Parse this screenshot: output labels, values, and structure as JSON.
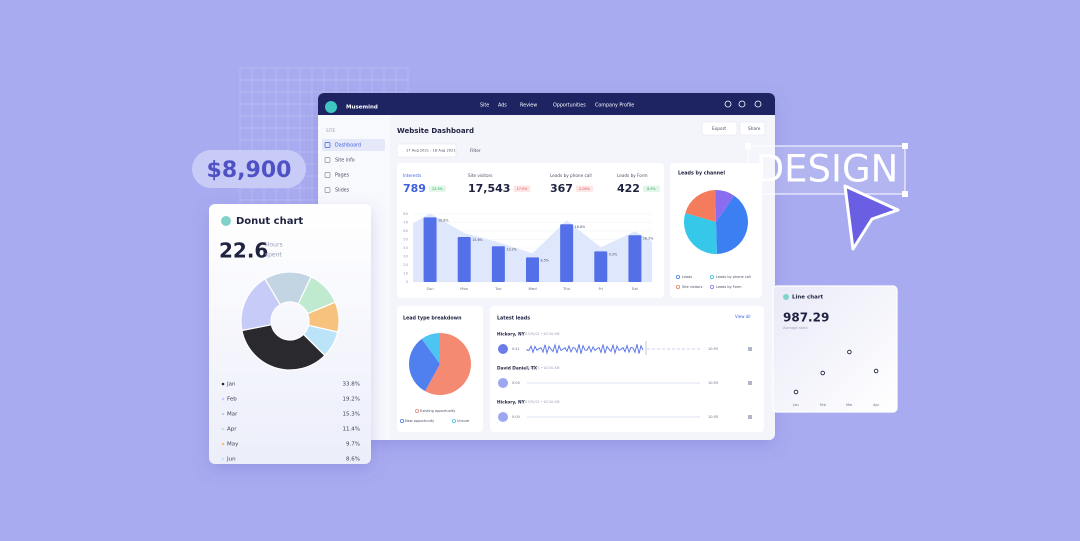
{
  "badge": {
    "price": "$8,900"
  },
  "design_label": "DESIGN",
  "dashboard": {
    "brand": "Musemind",
    "nav": [
      "Site",
      "Ads",
      "Review",
      "Opportunities",
      "Company Profile"
    ],
    "sidebar": {
      "section": "SITE",
      "items": [
        "Dashboard",
        "Site info",
        "Pages",
        "Slides"
      ]
    },
    "title": "Website Dashboard",
    "actions": [
      "Export",
      "Share"
    ],
    "date_range": "17 Aug 2021 - 18 Aug 2021",
    "filter": "Filter",
    "kpis": [
      {
        "label": "Interests",
        "value": "789",
        "change": "22.5%",
        "trend": "up"
      },
      {
        "label": "Site visitors",
        "value": "17,543",
        "change": "17.5%",
        "trend": "down"
      },
      {
        "label": "Leads by phone call",
        "value": "367",
        "change": "2.05%",
        "trend": "down"
      },
      {
        "label": "Leads by Form",
        "value": "422",
        "change": "8.5%",
        "trend": "up"
      }
    ],
    "leads": {
      "title": "Latest leads",
      "link": "View all",
      "rows": [
        {
          "name": "Hickory, NY",
          "time": "07/30/21 • 02:30 AM",
          "start": "0:41",
          "end": "10:55"
        },
        {
          "name": "David Daniel, TX",
          "time": "08/16/21 • 02:30 AM",
          "start": "0:00",
          "end": "10:55"
        },
        {
          "name": "Hickory, NY",
          "time": "07/30/21 • 02:30 AM",
          "start": "0:00",
          "end": "10:55"
        }
      ]
    }
  },
  "chart_data": [
    {
      "type": "bar",
      "categories": [
        "Sun",
        "Mon",
        "Tue",
        "Wed",
        "Thu",
        "Fri",
        "Sat"
      ],
      "values": [
        76,
        53,
        42,
        29,
        68,
        36,
        55
      ],
      "annotations": [
        "20.8%",
        "15.6%",
        "13.2%",
        "8.5%",
        "16.8%",
        "9.3%",
        "16.3%"
      ],
      "ylim": [
        0,
        80
      ],
      "yticks": [
        0,
        10,
        20,
        30,
        40,
        50,
        60,
        70,
        80
      ],
      "color": "#5470e8",
      "area_color": "#dfe7fc",
      "grid": true
    },
    {
      "type": "pie",
      "title": "Leads by channel",
      "categories": [
        "Leads",
        "Leads by phone call",
        "Site visitors",
        "Leads by Form"
      ],
      "values": [
        40,
        30,
        20,
        10
      ],
      "colors": [
        "#3b7ff2",
        "#36c8e8",
        "#f47b5c",
        "#8a6cf0"
      ]
    },
    {
      "type": "pie",
      "title": "Lead type breakdown",
      "categories": [
        "Existing opportunity",
        "New opportunity",
        "Unsure"
      ],
      "values": [
        58,
        32,
        10
      ],
      "colors": [
        "#f48a72",
        "#5080f0",
        "#4dc4f2"
      ]
    },
    {
      "type": "donut",
      "title": "Donut chart",
      "total": 22.6,
      "unit": [
        "Hours",
        "spent"
      ],
      "categories": [
        "Jan",
        "Feb",
        "Mar",
        "Apr",
        "May",
        "Jun"
      ],
      "values": [
        33.8,
        19.2,
        15.3,
        11.4,
        9.7,
        8.6
      ],
      "value_labels": [
        "33.8%",
        "19.2%",
        "15.3%",
        "11.4%",
        "9.7%",
        "8.6%"
      ],
      "colors": [
        "#2a2a2e",
        "#c6cbf7",
        "#c3d4e2",
        "#bfead0",
        "#f6c27e",
        "#bce4f8"
      ]
    },
    {
      "type": "scatter",
      "title": "Line chart",
      "total": 987.29,
      "subtitle": "Average stats",
      "categories": [
        "Jan",
        "Feb",
        "Mar",
        "Apr"
      ],
      "values": [
        8,
        27,
        48,
        29
      ],
      "ylim": [
        0,
        60
      ]
    }
  ]
}
